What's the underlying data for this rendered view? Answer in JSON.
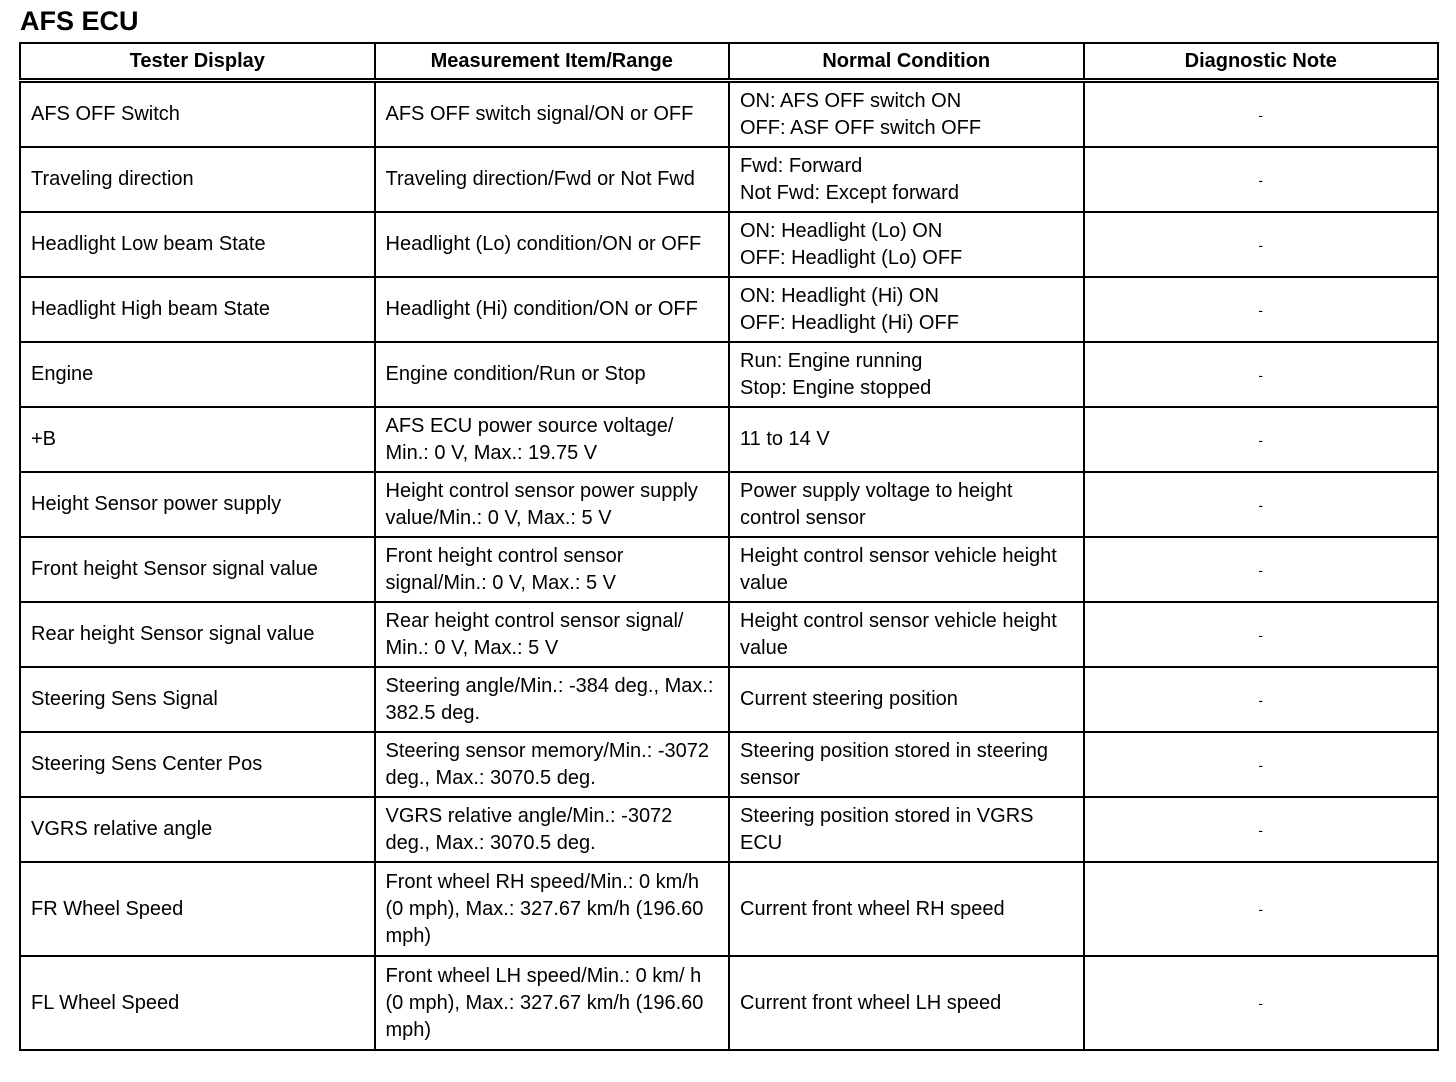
{
  "title": "AFS ECU",
  "table": {
    "headers": [
      "Tester Display",
      "Measurement Item/Range",
      "Normal Condition",
      "Diagnostic Note"
    ],
    "rows": [
      [
        "AFS OFF Switch",
        "AFS OFF switch signal/ON or OFF",
        "ON: AFS OFF switch ON\nOFF: ASF OFF switch OFF",
        "-"
      ],
      [
        "Traveling direction",
        "Traveling direction/Fwd or Not Fwd",
        "Fwd: Forward\nNot Fwd: Except forward",
        "-"
      ],
      [
        "Headlight Low beam State",
        "Headlight (Lo) condition/ON or OFF",
        "ON: Headlight (Lo) ON\nOFF: Headlight (Lo) OFF",
        "-"
      ],
      [
        "Headlight High beam State",
        "Headlight (Hi) condition/ON or OFF",
        "ON: Headlight (Hi) ON\nOFF: Headlight (Hi) OFF",
        "-"
      ],
      [
        "Engine",
        "Engine condition/Run or Stop",
        "Run: Engine running\nStop: Engine stopped",
        "-"
      ],
      [
        "+B",
        "AFS ECU power source voltage/ Min.: 0 V, Max.: 19.75 V",
        "11 to 14 V",
        "-"
      ],
      [
        "Height Sensor power supply",
        "Height control sensor power supply value/Min.: 0 V, Max.: 5 V",
        "Power supply voltage to height control sensor",
        "-"
      ],
      [
        "Front height Sensor signal value",
        "Front height control sensor signal/Min.: 0 V, Max.: 5 V",
        "Height control sensor vehicle height value",
        "-"
      ],
      [
        "Rear height Sensor signal value",
        "Rear height control sensor signal/ Min.: 0 V, Max.: 5 V",
        "Height control sensor vehicle height value",
        "-"
      ],
      [
        "Steering Sens Signal",
        "Steering angle/Min.: -384 deg., Max.: 382.5 deg.",
        "Current steering position",
        "-"
      ],
      [
        "Steering Sens Center Pos",
        "Steering sensor memory/Min.: -3072 deg., Max.: 3070.5 deg.",
        "Steering position stored in steering sensor",
        "-"
      ],
      [
        "VGRS relative angle",
        "VGRS relative angle/Min.: -3072 deg., Max.: 3070.5 deg.",
        "Steering position stored in VGRS ECU",
        "-"
      ],
      [
        "FR Wheel Speed",
        "Front wheel RH speed/Min.: 0 km/h (0 mph), Max.: 327.67 km/h (196.60 mph)",
        "Current front wheel RH speed",
        "-"
      ],
      [
        "FL Wheel Speed",
        "Front wheel LH speed/Min.: 0 km/ h (0 mph), Max.: 327.67 km/h (196.60 mph)",
        "Current front wheel LH speed",
        "-"
      ]
    ]
  }
}
